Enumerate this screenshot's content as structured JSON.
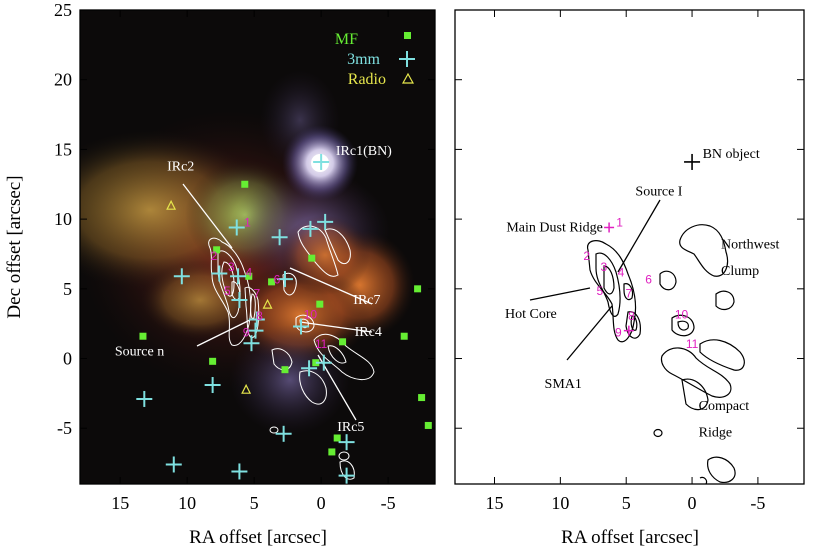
{
  "chart_data": [
    {
      "type": "scatter",
      "panel": "left",
      "xlabel": "RA offset [arcsec]",
      "ylabel": "Dec offset [arcsec]",
      "xlim": [
        18,
        -8.5
      ],
      "ylim": [
        -9,
        25
      ],
      "xticks": [
        15,
        10,
        5,
        0,
        -5
      ],
      "yticks": [
        25,
        20,
        15,
        10,
        5,
        0,
        -5
      ],
      "legend": {
        "placement": "top-right",
        "entries": [
          {
            "name": "MF",
            "color": "#66ee33"
          },
          {
            "name": "3mm",
            "color": "#7fe0e0"
          },
          {
            "name": "Radio",
            "color": "#e6e64c"
          }
        ]
      },
      "mf": [
        [
          5.7,
          12.5
        ],
        [
          7.8,
          7.8
        ],
        [
          5.4,
          5.9
        ],
        [
          3.7,
          5.5
        ],
        [
          0.7,
          7.2
        ],
        [
          0.1,
          3.9
        ],
        [
          -7.2,
          5.0
        ],
        [
          -6.2,
          1.6
        ],
        [
          13.3,
          1.6
        ],
        [
          8.1,
          -0.2
        ],
        [
          0.4,
          -0.3
        ],
        [
          2.7,
          -0.8
        ],
        [
          -1.6,
          1.2
        ],
        [
          -1.2,
          -5.7
        ],
        [
          -0.8,
          -6.7
        ],
        [
          -7.5,
          -2.8
        ],
        [
          -8.0,
          -4.8
        ]
      ],
      "mm3": [
        [
          0,
          14.1
        ],
        [
          6.3,
          9.4
        ],
        [
          3.1,
          8.7
        ],
        [
          0.8,
          9.3
        ],
        [
          -0.3,
          9.8
        ],
        [
          10.4,
          5.9
        ],
        [
          7.6,
          6.1
        ],
        [
          6.2,
          5.9
        ],
        [
          2.7,
          5.7
        ],
        [
          4.8,
          2.8
        ],
        [
          6.1,
          4.2
        ],
        [
          4.9,
          2.0
        ],
        [
          5.2,
          1.1
        ],
        [
          1.5,
          2.3
        ],
        [
          0.9,
          -0.7
        ],
        [
          -0.2,
          -0.3
        ],
        [
          8.1,
          -1.9
        ],
        [
          13.2,
          -2.9
        ],
        [
          2.8,
          -5.4
        ],
        [
          -1.9,
          -6.0
        ],
        [
          11.0,
          -7.6
        ],
        [
          6.1,
          -8.1
        ],
        [
          -1.9,
          -8.4
        ]
      ],
      "radio": [
        [
          11.2,
          11.0
        ],
        [
          4.0,
          3.9
        ],
        [
          5.6,
          -2.2
        ]
      ],
      "numbers": [
        [
          "1",
          5.5,
          9.7
        ],
        [
          "2",
          8.0,
          7.3
        ],
        [
          "3",
          6.7,
          6.5
        ],
        [
          "4",
          5.4,
          6.1
        ],
        [
          "5",
          7.0,
          4.8
        ],
        [
          "6",
          3.3,
          5.6
        ],
        [
          "7",
          4.8,
          4.6
        ],
        [
          "8",
          4.6,
          3.0
        ],
        [
          "9",
          5.6,
          1.8
        ],
        [
          "10",
          0.8,
          3.1
        ],
        [
          "11",
          0.0,
          1.0
        ]
      ],
      "labels": [
        {
          "text": "IRc1(BN)",
          "x": -1.1,
          "y": 14.6
        },
        {
          "text": "IRc2",
          "x": 11.5,
          "y": 13.5
        },
        {
          "text": "IRc7",
          "x": -2.4,
          "y": 3.9
        },
        {
          "text": "IRc4",
          "x": -2.5,
          "y": 1.6
        },
        {
          "text": "Source n",
          "x": 15.4,
          "y": 0.2
        },
        {
          "text": "IRc5",
          "x": -1.2,
          "y": -5.2
        }
      ]
    },
    {
      "type": "scatter",
      "panel": "right",
      "xlabel": "RA offset [arcsec]",
      "ylabel": "",
      "xlim": [
        18,
        -8.5
      ],
      "ylim": [
        -9,
        25
      ],
      "xticks": [
        15,
        10,
        5,
        0,
        -5
      ],
      "bn": [
        0,
        14.1
      ],
      "numbers": [
        [
          "1",
          5.5,
          9.7
        ],
        [
          "2",
          8.0,
          7.3
        ],
        [
          "3",
          6.7,
          6.5
        ],
        [
          "4",
          5.4,
          6.1
        ],
        [
          "5",
          7.0,
          4.8
        ],
        [
          "6",
          3.3,
          5.6
        ],
        [
          "7",
          4.8,
          4.6
        ],
        [
          "8",
          4.6,
          3.0
        ],
        [
          "9",
          5.6,
          1.8
        ],
        [
          "10",
          0.8,
          3.1
        ],
        [
          "11",
          0.0,
          1.0
        ]
      ],
      "labels": [
        {
          "text": "BN object",
          "x": -0.8,
          "y": 14.4
        },
        {
          "text": "Source I",
          "x": 4.3,
          "y": 11.7
        },
        {
          "text": "Main Dust Ridge",
          "x": 14.1,
          "y": 9.1
        },
        {
          "text": "Northwest",
          "x": -2.2,
          "y": 7.9
        },
        {
          "text": "Clump",
          "x": -2.2,
          "y": 6.0
        },
        {
          "text": "Hot Core",
          "x": 14.2,
          "y": 2.9
        },
        {
          "text": "SMA1",
          "x": 11.2,
          "y": -2.1
        },
        {
          "text": "Compact",
          "x": -0.5,
          "y": -3.7
        },
        {
          "text": "Ridge",
          "x": -0.5,
          "y": -5.6
        }
      ]
    }
  ]
}
